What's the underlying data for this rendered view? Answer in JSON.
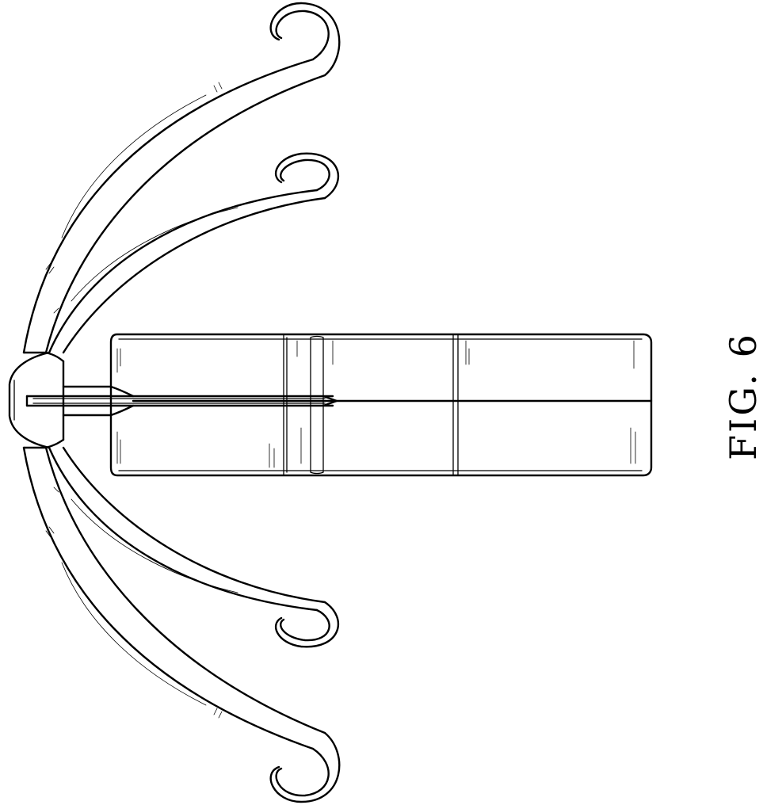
{
  "figure": {
    "label": "FIG. 6"
  },
  "colors": {
    "line": "#000000",
    "background": "#ffffff"
  }
}
